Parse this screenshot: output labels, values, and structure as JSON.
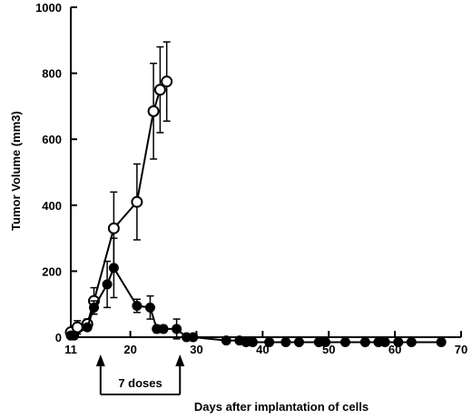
{
  "chart_data": {
    "type": "line",
    "title": "",
    "xlabel": "Days after implantation of cells",
    "ylabel": "Tumor Volume (mm3)",
    "xlim": [
      11,
      70
    ],
    "ylim": [
      0,
      1000
    ],
    "xticks": [
      11,
      20,
      30,
      40,
      50,
      60,
      70
    ],
    "yticks": [
      0,
      200,
      400,
      600,
      800,
      1000
    ],
    "grid": false,
    "series": [
      {
        "marker": "open-circle",
        "x": [
          11,
          12,
          13.5,
          14.5,
          17.5,
          21,
          23.5,
          24.5,
          25.5
        ],
        "y": [
          15,
          30,
          40,
          110,
          330,
          410,
          685,
          750,
          775
        ],
        "error": [
          10,
          20,
          15,
          40,
          110,
          115,
          145,
          130,
          120
        ]
      },
      {
        "marker": "filled-circle",
        "x": [
          11,
          11.5,
          13.5,
          14.5,
          16.5,
          17.5,
          21,
          23,
          24,
          25,
          27,
          28.5,
          29.5,
          34.5,
          36.5,
          37.5,
          38.5,
          41,
          43.5,
          45.5,
          48.5,
          49.5,
          52.5,
          55.5,
          57.5,
          58.5,
          60.5,
          62.5,
          67
        ],
        "y": [
          5,
          5,
          30,
          90,
          160,
          210,
          95,
          90,
          25,
          25,
          25,
          0,
          0,
          -10,
          -10,
          -15,
          -15,
          -15,
          -15,
          -15,
          -15,
          -15,
          -15,
          -15,
          -15,
          -15,
          -15,
          -15,
          -15
        ],
        "error": [
          5,
          5,
          8,
          20,
          70,
          90,
          20,
          35,
          10,
          10,
          30,
          0,
          0,
          0,
          0,
          0,
          0,
          0,
          0,
          0,
          0,
          0,
          0,
          0,
          0,
          0,
          0,
          0,
          0
        ]
      }
    ],
    "annotations": [
      {
        "text": "7 doses",
        "x_start": 15.5,
        "x_end": 27.5
      }
    ]
  }
}
